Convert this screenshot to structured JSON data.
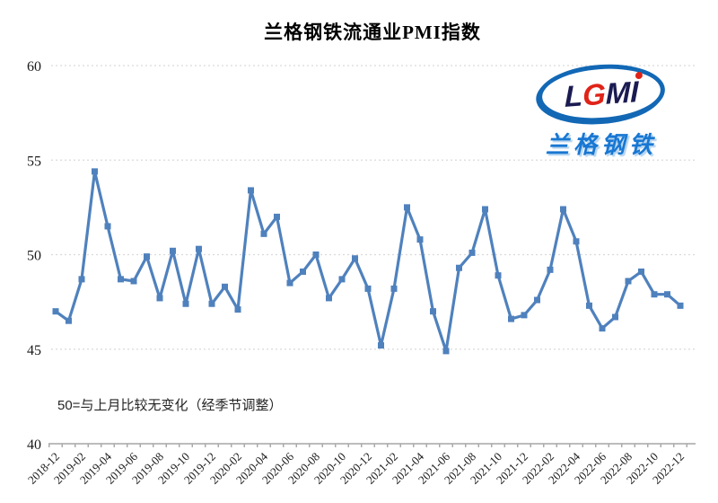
{
  "theme": {
    "accent_line_color": "#4F81BD",
    "grid_color": "#d9d9d9",
    "axis_color": "#a6a6a6",
    "text_color": "#1a1a1a",
    "logo_blue": "#1268b5",
    "logo_red": "#e02318",
    "logo_navy": "#1b1b52",
    "logo_subtitle_blue": "#1877d2"
  },
  "logo": {
    "letters": [
      "L",
      "G",
      "M",
      "I"
    ],
    "subtitle": "兰格钢铁"
  },
  "chart_data": {
    "type": "line",
    "title": "兰格钢铁流通业PMI指数",
    "xlabel": "",
    "ylabel": "",
    "ylim": [
      40,
      60
    ],
    "yticks": [
      40,
      45,
      50,
      55,
      60
    ],
    "xtick_every": 2,
    "grid": "horizontal-dotted",
    "legend": "none",
    "marker": "square",
    "annotation": "50=与上月比较无变化（经季节调整）",
    "x": [
      "2018-12",
      "2019-01",
      "2019-02",
      "2019-03",
      "2019-04",
      "2019-05",
      "2019-06",
      "2019-07",
      "2019-08",
      "2019-09",
      "2019-10",
      "2019-11",
      "2019-12",
      "2020-01",
      "2020-02",
      "2020-03",
      "2020-04",
      "2020-05",
      "2020-06",
      "2020-07",
      "2020-08",
      "2020-09",
      "2020-10",
      "2020-11",
      "2020-12",
      "2021-01",
      "2021-02",
      "2021-03",
      "2021-04",
      "2021-05",
      "2021-06",
      "2021-07",
      "2021-08",
      "2021-09",
      "2021-10",
      "2021-11",
      "2021-12",
      "2022-01",
      "2022-02",
      "2022-03",
      "2022-04",
      "2022-05",
      "2022-06",
      "2022-07",
      "2022-08",
      "2022-09",
      "2022-10",
      "2022-11",
      "2022-12"
    ],
    "series": [
      {
        "name": "兰格钢铁流通业PMI",
        "values": [
          47.0,
          46.5,
          48.7,
          54.4,
          51.5,
          48.7,
          48.6,
          49.9,
          47.7,
          50.2,
          47.4,
          50.3,
          47.4,
          48.3,
          47.1,
          53.4,
          51.1,
          52.0,
          48.5,
          49.1,
          50.0,
          47.7,
          48.7,
          49.8,
          48.2,
          45.2,
          48.2,
          52.5,
          50.8,
          47.0,
          44.9,
          49.3,
          50.1,
          52.4,
          48.9,
          46.6,
          46.8,
          47.6,
          49.2,
          52.4,
          50.7,
          47.3,
          46.1,
          46.7,
          48.6,
          49.1,
          47.9,
          47.9,
          47.3
        ]
      }
    ]
  }
}
